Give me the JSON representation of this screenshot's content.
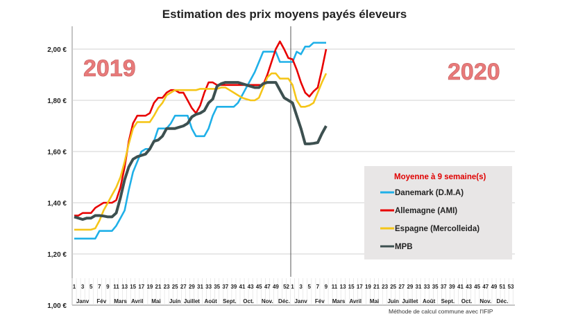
{
  "chart_data": {
    "type": "line",
    "title": "Estimation des prix moyens payés éleveurs",
    "ylim": [
      1.0,
      2.1
    ],
    "yticks": [
      "1,00 €",
      "1,20 €",
      "1,40 €",
      "1,60 €",
      "1,80 €",
      "2,00 €"
    ],
    "ytick_values": [
      1.0,
      1.2,
      1.4,
      1.6,
      1.8,
      2.0
    ],
    "grid": true,
    "x_weeks_2019": [
      "1",
      "3",
      "5",
      "7",
      "9",
      "11",
      "13",
      "15",
      "17",
      "19",
      "21",
      "23",
      "25",
      "27",
      "29",
      "31",
      "33",
      "35",
      "37",
      "39",
      "41",
      "43",
      "45",
      "47",
      "49",
      "52"
    ],
    "x_weeks_2020": [
      "1",
      "3",
      "5",
      "7",
      "9",
      "11",
      "13",
      "15",
      "17",
      "19",
      "21",
      "23",
      "25",
      "27",
      "29",
      "31",
      "33",
      "35",
      "37",
      "39",
      "41",
      "43",
      "45",
      "47",
      "49",
      "51",
      "53"
    ],
    "months": [
      "Janv",
      "Fév",
      "Mars",
      "Avril",
      "Mai",
      "Juin",
      "Juillet",
      "Août",
      "Sept.",
      "Oct.",
      "Nov.",
      "Déc."
    ],
    "year_labels": [
      "2019",
      "2020"
    ],
    "legend_title": "Moyenne à  9 semaine(s)",
    "legend_placement": "bottom-right",
    "x_note": "weeks 1-52 of 2019 followed by weeks 1-9 of 2020",
    "series": [
      {
        "name": "Danemark (D.M.A)",
        "color": "#1fb0e8",
        "values": [
          1.26,
          1.26,
          1.26,
          1.26,
          1.26,
          1.26,
          1.29,
          1.29,
          1.29,
          1.29,
          1.31,
          1.34,
          1.37,
          1.45,
          1.52,
          1.56,
          1.6,
          1.61,
          1.61,
          1.64,
          1.69,
          1.69,
          1.69,
          1.71,
          1.74,
          1.74,
          1.74,
          1.74,
          1.69,
          1.66,
          1.66,
          1.66,
          1.69,
          1.74,
          1.775,
          1.775,
          1.775,
          1.775,
          1.775,
          1.79,
          1.82,
          1.85,
          1.88,
          1.91,
          1.95,
          1.99,
          1.99,
          1.99,
          1.99,
          1.95,
          1.95,
          1.95,
          1.95,
          1.99,
          1.98,
          2.01,
          2.01,
          2.025,
          2.025,
          2.025,
          2.025
        ]
      },
      {
        "name": "Allemagne (AMI)",
        "color": "#e80000",
        "values": [
          1.35,
          1.35,
          1.36,
          1.36,
          1.36,
          1.38,
          1.39,
          1.4,
          1.4,
          1.4,
          1.41,
          1.46,
          1.54,
          1.64,
          1.71,
          1.74,
          1.74,
          1.74,
          1.75,
          1.79,
          1.81,
          1.81,
          1.83,
          1.84,
          1.84,
          1.83,
          1.83,
          1.8,
          1.77,
          1.75,
          1.78,
          1.83,
          1.87,
          1.87,
          1.86,
          1.86,
          1.86,
          1.86,
          1.86,
          1.86,
          1.86,
          1.86,
          1.86,
          1.86,
          1.86,
          1.86,
          1.9,
          1.95,
          2.0,
          2.03,
          2.0,
          1.965,
          1.96,
          1.92,
          1.87,
          1.83,
          1.815,
          1.835,
          1.85,
          1.92,
          2.0
        ]
      },
      {
        "name": "Espagne (Mercolleida)",
        "color": "#f5c518",
        "values": [
          1.295,
          1.295,
          1.295,
          1.295,
          1.295,
          1.3,
          1.33,
          1.37,
          1.4,
          1.43,
          1.46,
          1.5,
          1.56,
          1.63,
          1.69,
          1.715,
          1.715,
          1.715,
          1.715,
          1.74,
          1.77,
          1.79,
          1.82,
          1.83,
          1.84,
          1.84,
          1.84,
          1.84,
          1.84,
          1.84,
          1.845,
          1.845,
          1.845,
          1.845,
          1.845,
          1.85,
          1.85,
          1.84,
          1.83,
          1.82,
          1.81,
          1.805,
          1.8,
          1.8,
          1.81,
          1.85,
          1.89,
          1.905,
          1.905,
          1.885,
          1.885,
          1.885,
          1.86,
          1.8,
          1.775,
          1.775,
          1.78,
          1.79,
          1.83,
          1.87,
          1.905
        ]
      },
      {
        "name": "MPB",
        "color": "#3d5050",
        "values": [
          1.345,
          1.34,
          1.335,
          1.34,
          1.34,
          1.35,
          1.35,
          1.348,
          1.345,
          1.345,
          1.36,
          1.42,
          1.49,
          1.54,
          1.57,
          1.58,
          1.585,
          1.59,
          1.61,
          1.64,
          1.645,
          1.66,
          1.69,
          1.69,
          1.69,
          1.695,
          1.7,
          1.71,
          1.735,
          1.745,
          1.75,
          1.76,
          1.79,
          1.805,
          1.855,
          1.865,
          1.87,
          1.87,
          1.87,
          1.87,
          1.865,
          1.86,
          1.855,
          1.85,
          1.85,
          1.865,
          1.87,
          1.87,
          1.87,
          1.84,
          1.81,
          1.8,
          1.79,
          1.74,
          1.69,
          1.63,
          1.63,
          1.632,
          1.635,
          1.67,
          1.7
        ]
      }
    ]
  },
  "footnote": "Méthode de calcul commune avec l'IFIP"
}
